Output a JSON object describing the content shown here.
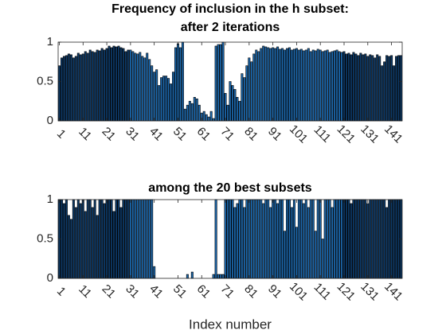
{
  "chart_data": [
    {
      "type": "bar",
      "title": [
        "Frequency of inclusion in the h subset:",
        "after 2 iterations"
      ],
      "x": [
        1,
        2,
        3,
        4,
        5,
        6,
        7,
        8,
        9,
        10,
        11,
        12,
        13,
        14,
        15,
        16,
        17,
        18,
        19,
        20,
        21,
        22,
        23,
        24,
        25,
        26,
        27,
        28,
        29,
        30,
        31,
        32,
        33,
        34,
        35,
        36,
        37,
        38,
        39,
        40,
        41,
        42,
        43,
        44,
        45,
        46,
        47,
        48,
        49,
        50,
        51,
        52,
        53,
        54,
        55,
        56,
        57,
        58,
        59,
        60,
        61,
        62,
        63,
        64,
        65,
        66,
        67,
        68,
        69,
        70,
        71,
        72,
        73,
        74,
        75,
        76,
        77,
        78,
        79,
        80,
        81,
        82,
        83,
        84,
        85,
        86,
        87,
        88,
        89,
        90,
        91,
        92,
        93,
        94,
        95,
        96,
        97,
        98,
        99,
        100,
        101,
        102,
        103,
        104,
        105,
        106,
        107,
        108,
        109,
        110,
        111,
        112,
        113,
        114,
        115,
        116,
        117,
        118,
        119,
        120,
        121,
        122,
        123,
        124,
        125,
        126,
        127,
        128,
        129,
        130,
        131,
        132,
        133,
        134,
        135,
        136,
        137,
        138,
        139,
        140,
        141,
        142,
        143,
        144,
        145
      ],
      "values": [
        0.7,
        0.8,
        0.82,
        0.83,
        0.85,
        0.84,
        0.8,
        0.82,
        0.86,
        0.84,
        0.85,
        0.88,
        0.86,
        0.9,
        0.88,
        0.87,
        0.9,
        0.89,
        0.92,
        0.9,
        0.92,
        0.95,
        0.93,
        0.95,
        0.94,
        0.95,
        0.93,
        0.92,
        0.88,
        0.9,
        0.9,
        0.88,
        0.86,
        0.85,
        0.87,
        0.82,
        0.8,
        0.86,
        0.78,
        0.7,
        0.62,
        0.65,
        0.45,
        0.55,
        0.57,
        0.57,
        0.54,
        0.47,
        0.62,
        0.93,
        0.98,
        0.93,
        1.0,
        0.15,
        0.2,
        0.25,
        0.22,
        0.3,
        0.28,
        0.2,
        0.1,
        0.12,
        0.08,
        0.05,
        0.12,
        0.03,
        0.95,
        0.97,
        0.97,
        1.0,
        0.35,
        0.2,
        0.5,
        0.45,
        0.4,
        0.3,
        0.25,
        0.6,
        0.55,
        0.7,
        0.8,
        0.75,
        0.85,
        0.9,
        0.88,
        0.92,
        0.95,
        0.94,
        0.93,
        0.92,
        0.93,
        0.92,
        0.94,
        0.91,
        0.92,
        0.9,
        0.92,
        0.93,
        0.9,
        0.91,
        0.92,
        0.9,
        0.91,
        0.89,
        0.9,
        0.92,
        0.88,
        0.9,
        0.89,
        0.91,
        0.9,
        0.88,
        0.89,
        0.9,
        0.87,
        0.88,
        0.89,
        0.9,
        0.88,
        0.87,
        0.88,
        0.85,
        0.86,
        0.84,
        0.87,
        0.85,
        0.83,
        0.86,
        0.84,
        0.85,
        0.82,
        0.84,
        0.83,
        0.8,
        0.84,
        0.82,
        0.7,
        0.75,
        0.83,
        0.82,
        0.83,
        0.7,
        0.82,
        0.83,
        0.83
      ],
      "colors": [
        {
          "from": 1,
          "to": 30,
          "color": "#0d3a68"
        },
        {
          "from": 31,
          "to": 120,
          "color": "#1c68ad"
        },
        {
          "from": 121,
          "to": 145,
          "color": "#0d3a68"
        }
      ],
      "edge_color": "#000000",
      "xlim": [
        0.5,
        145.5
      ],
      "xticks": [
        1,
        11,
        21,
        31,
        41,
        51,
        61,
        71,
        81,
        91,
        101,
        111,
        121,
        131,
        141
      ],
      "ylim": [
        0,
        1
      ],
      "yticks": [
        0,
        0.5,
        1
      ]
    },
    {
      "type": "bar",
      "title": [
        "among the 20 best subsets"
      ],
      "xlabel": "Index number",
      "x": [
        1,
        2,
        3,
        4,
        5,
        6,
        7,
        8,
        9,
        10,
        11,
        12,
        13,
        14,
        15,
        16,
        17,
        18,
        19,
        20,
        21,
        22,
        23,
        24,
        25,
        26,
        27,
        28,
        29,
        30,
        31,
        32,
        33,
        34,
        35,
        36,
        37,
        38,
        39,
        40,
        41,
        42,
        43,
        44,
        45,
        46,
        47,
        48,
        49,
        50,
        51,
        52,
        53,
        54,
        55,
        56,
        57,
        58,
        59,
        60,
        61,
        62,
        63,
        64,
        65,
        66,
        67,
        68,
        69,
        70,
        71,
        72,
        73,
        74,
        75,
        76,
        77,
        78,
        79,
        80,
        81,
        82,
        83,
        84,
        85,
        86,
        87,
        88,
        89,
        90,
        91,
        92,
        93,
        94,
        95,
        96,
        97,
        98,
        99,
        100,
        101,
        102,
        103,
        104,
        105,
        106,
        107,
        108,
        109,
        110,
        111,
        112,
        113,
        114,
        115,
        116,
        117,
        118,
        119,
        120,
        121,
        122,
        123,
        124,
        125,
        126,
        127,
        128,
        129,
        130,
        131,
        132,
        133,
        134,
        135,
        136,
        137,
        138,
        139,
        140,
        141,
        142,
        143,
        144,
        145
      ],
      "values": [
        1,
        1,
        0.95,
        1,
        0.8,
        0.75,
        1,
        0.9,
        1,
        0.95,
        1,
        0.85,
        1,
        1,
        0.9,
        1,
        0.8,
        1,
        1,
        0.95,
        1,
        1,
        1,
        0.85,
        1,
        1,
        0.9,
        1,
        1,
        1,
        1,
        1,
        1,
        1,
        1,
        1,
        1,
        1,
        1,
        1,
        0.15,
        0,
        0,
        0,
        0,
        0,
        0,
        0,
        0,
        0,
        0,
        0,
        0,
        0,
        0.05,
        0,
        0.08,
        0,
        0,
        0,
        0,
        0,
        0,
        0,
        0,
        0.05,
        1,
        0.05,
        0.05,
        0.05,
        1,
        1,
        1,
        1,
        0.9,
        0.95,
        1,
        1,
        0.9,
        1,
        1,
        1,
        1,
        1,
        1,
        1,
        0.95,
        1,
        1,
        0.9,
        1,
        1,
        0.95,
        1,
        1,
        0.6,
        1,
        1,
        0.9,
        1,
        0.65,
        1,
        1,
        0.95,
        1,
        0.9,
        1,
        1,
        0.6,
        1,
        1,
        0.5,
        1,
        1,
        1,
        0.9,
        1,
        1,
        1,
        1,
        1,
        1,
        1,
        0.95,
        1,
        1,
        1,
        1,
        1,
        1,
        0.95,
        1,
        1,
        1,
        1,
        1,
        1,
        1,
        0.9,
        1,
        1,
        1,
        1,
        1,
        1
      ],
      "colors": [
        {
          "from": 1,
          "to": 30,
          "color": "#0d3a68"
        },
        {
          "from": 31,
          "to": 120,
          "color": "#1c68ad"
        },
        {
          "from": 121,
          "to": 145,
          "color": "#0d3a68"
        }
      ],
      "edge_color": "#000000",
      "xlim": [
        0.5,
        145.5
      ],
      "xticks": [
        1,
        11,
        21,
        31,
        41,
        51,
        61,
        71,
        81,
        91,
        101,
        111,
        121,
        131,
        141
      ],
      "ylim": [
        0,
        1
      ],
      "yticks": [
        0,
        0.5,
        1
      ]
    }
  ]
}
